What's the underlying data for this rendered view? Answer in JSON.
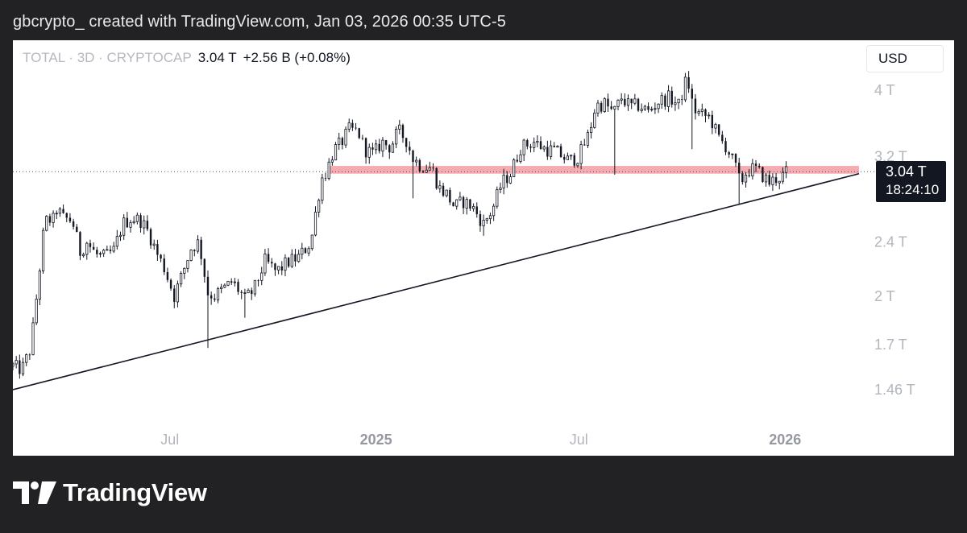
{
  "caption": "gbcrypto_ created with TradingView.com, Jan 03, 2026 00:35 UTC-5",
  "legend": {
    "symbol": "TOTAL · 3D · CRYPTOCAP",
    "last": "3.04 T",
    "change": "+2.56 B (+0.08%)"
  },
  "currency_label": "USD",
  "price_tag": {
    "price": "3.04 T",
    "countdown": "18:24:10"
  },
  "brand": {
    "name": "TradingView",
    "logo_icon": "tradingview-logo-icon"
  },
  "colors": {
    "background": "#222224",
    "panel": "#ffffff",
    "candle": "#131722",
    "resistance_zone": "#f4a3a8",
    "trendline": "#131722",
    "axis_text": "#b2b5be"
  },
  "chart_data": {
    "type": "candlestick",
    "scale": "log",
    "ylim": [
      1.3,
      4.5
    ],
    "y_ticks": [
      {
        "value": 4.0,
        "label": "4 T"
      },
      {
        "value": 3.2,
        "label": "3.2 T"
      },
      {
        "value": 2.4,
        "label": "2.4 T"
      },
      {
        "value": 2.0,
        "label": "2 T"
      },
      {
        "value": 1.7,
        "label": "1.7 T"
      },
      {
        "value": 1.46,
        "label": "1.46 T"
      }
    ],
    "x_ticks": [
      {
        "date": "2024-07-01",
        "label": "Jul",
        "bold": false
      },
      {
        "date": "2025-01-01",
        "label": "2025",
        "bold": true
      },
      {
        "date": "2025-07-01",
        "label": "Jul",
        "bold": false
      },
      {
        "date": "2026-01-01",
        "label": "2026",
        "bold": true
      }
    ],
    "x_range": [
      "2024-02-12",
      "2026-03-08"
    ],
    "last_price": 3.04,
    "resistance_zone": {
      "from_date": "2024-11-20",
      "low": 3.02,
      "high": 3.1
    },
    "trendline": {
      "start": [
        "2024-02-12",
        1.46
      ],
      "end": [
        "2026-03-08",
        3.02
      ]
    },
    "close_path": [
      [
        "2024-02-12",
        1.58
      ],
      [
        "2024-02-20",
        1.56
      ],
      [
        "2024-02-28",
        1.68
      ],
      [
        "2024-03-05",
        2.05
      ],
      [
        "2024-03-10",
        2.45
      ],
      [
        "2024-03-14",
        2.62
      ],
      [
        "2024-03-18",
        2.55
      ],
      [
        "2024-03-22",
        2.68
      ],
      [
        "2024-03-28",
        2.6
      ],
      [
        "2024-04-05",
        2.58
      ],
      [
        "2024-04-12",
        2.32
      ],
      [
        "2024-04-18",
        2.4
      ],
      [
        "2024-04-26",
        2.3
      ],
      [
        "2024-05-04",
        2.28
      ],
      [
        "2024-05-12",
        2.33
      ],
      [
        "2024-05-20",
        2.55
      ],
      [
        "2024-05-28",
        2.6
      ],
      [
        "2024-06-05",
        2.58
      ],
      [
        "2024-06-12",
        2.48
      ],
      [
        "2024-06-20",
        2.3
      ],
      [
        "2024-06-26",
        2.2
      ],
      [
        "2024-07-05",
        2.0
      ],
      [
        "2024-07-12",
        2.15
      ],
      [
        "2024-07-20",
        2.35
      ],
      [
        "2024-07-27",
        2.4
      ],
      [
        "2024-08-04",
        2.02
      ],
      [
        "2024-08-10",
        2.0
      ],
      [
        "2024-08-18",
        2.05
      ],
      [
        "2024-08-26",
        2.1
      ],
      [
        "2024-09-06",
        1.98
      ],
      [
        "2024-09-14",
        2.04
      ],
      [
        "2024-09-24",
        2.25
      ],
      [
        "2024-10-04",
        2.17
      ],
      [
        "2024-10-14",
        2.24
      ],
      [
        "2024-10-24",
        2.28
      ],
      [
        "2024-11-04",
        2.4
      ],
      [
        "2024-11-09",
        2.7
      ],
      [
        "2024-11-13",
        2.96
      ],
      [
        "2024-11-18",
        3.05
      ],
      [
        "2024-11-24",
        3.26
      ],
      [
        "2024-12-01",
        3.35
      ],
      [
        "2024-12-08",
        3.5
      ],
      [
        "2024-12-16",
        3.48
      ],
      [
        "2024-12-22",
        3.28
      ],
      [
        "2024-12-30",
        3.22
      ],
      [
        "2025-01-06",
        3.36
      ],
      [
        "2025-01-14",
        3.3
      ],
      [
        "2025-01-21",
        3.49
      ],
      [
        "2025-01-28",
        3.38
      ],
      [
        "2025-02-03",
        3.18
      ],
      [
        "2025-02-10",
        3.1
      ],
      [
        "2025-02-20",
        3.08
      ],
      [
        "2025-02-26",
        2.88
      ],
      [
        "2025-03-05",
        2.82
      ],
      [
        "2025-03-12",
        2.7
      ],
      [
        "2025-03-20",
        2.75
      ],
      [
        "2025-03-28",
        2.7
      ],
      [
        "2025-04-07",
        2.55
      ],
      [
        "2025-04-15",
        2.68
      ],
      [
        "2025-04-23",
        2.92
      ],
      [
        "2025-05-01",
        3.02
      ],
      [
        "2025-05-10",
        3.3
      ],
      [
        "2025-05-22",
        3.36
      ],
      [
        "2025-06-01",
        3.28
      ],
      [
        "2025-06-10",
        3.26
      ],
      [
        "2025-06-22",
        3.15
      ],
      [
        "2025-07-01",
        3.2
      ],
      [
        "2025-07-10",
        3.45
      ],
      [
        "2025-07-16",
        3.8
      ],
      [
        "2025-07-24",
        3.82
      ],
      [
        "2025-08-01",
        3.7
      ],
      [
        "2025-08-08",
        3.9
      ],
      [
        "2025-08-16",
        3.78
      ],
      [
        "2025-08-24",
        3.8
      ],
      [
        "2025-09-01",
        3.72
      ],
      [
        "2025-09-10",
        3.85
      ],
      [
        "2025-09-20",
        3.9
      ],
      [
        "2025-09-28",
        3.8
      ],
      [
        "2025-10-04",
        4.1
      ],
      [
        "2025-10-08",
        4.05
      ],
      [
        "2025-10-11",
        3.75
      ],
      [
        "2025-10-18",
        3.68
      ],
      [
        "2025-10-26",
        3.65
      ],
      [
        "2025-11-03",
        3.4
      ],
      [
        "2025-11-10",
        3.3
      ],
      [
        "2025-11-18",
        3.08
      ],
      [
        "2025-11-22",
        2.92
      ],
      [
        "2025-11-28",
        3.05
      ],
      [
        "2025-12-05",
        3.07
      ],
      [
        "2025-12-12",
        3.0
      ],
      [
        "2025-12-18",
        2.93
      ],
      [
        "2025-12-24",
        2.97
      ],
      [
        "2025-12-30",
        3.0
      ],
      [
        "2026-01-03",
        3.04
      ]
    ],
    "wick_events": [
      {
        "date": "2024-08-05",
        "low": 1.68
      },
      {
        "date": "2024-09-06",
        "low": 1.86
      },
      {
        "date": "2025-02-03",
        "low": 2.78
      },
      {
        "date": "2025-04-07",
        "low": 2.45
      },
      {
        "date": "2025-08-03",
        "low": 3.01
      },
      {
        "date": "2025-10-10",
        "low": 3.28
      },
      {
        "date": "2025-11-21",
        "low": 2.72
      }
    ]
  }
}
